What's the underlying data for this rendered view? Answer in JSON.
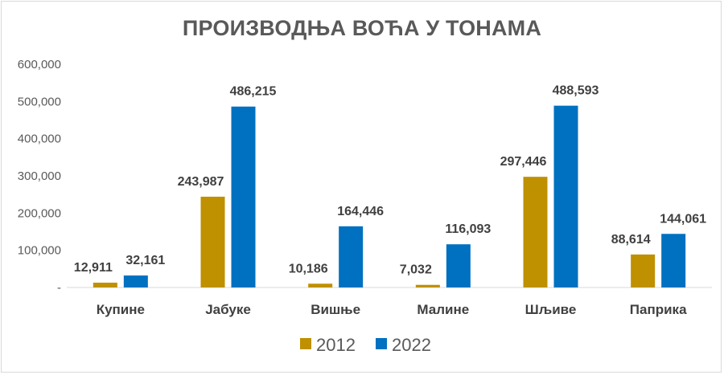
{
  "chart_data": {
    "type": "bar",
    "title": "ПРОИЗВОДЊА ВОЋА У ТОНАМА",
    "categories": [
      "Купине",
      "Јабуке",
      "Вишње",
      "Малине",
      "Шљиве",
      "Паприка"
    ],
    "series": [
      {
        "name": "2012",
        "color": "#bf9000",
        "values": [
          12911,
          243987,
          10186,
          7032,
          297446,
          88614
        ],
        "labels": [
          "12,911",
          "243,987",
          "10,186",
          "7,032",
          "297,446",
          "88,614"
        ]
      },
      {
        "name": "2022",
        "color": "#0070c0",
        "values": [
          32161,
          486215,
          164446,
          116093,
          488593,
          144061
        ],
        "labels": [
          "32,161",
          "486,215",
          "164,446",
          "116,093",
          "488,593",
          "144,061"
        ]
      }
    ],
    "ylim": [
      0,
      600000
    ],
    "yticks": [
      "-",
      "100,000",
      "200,000",
      "300,000",
      "400,000",
      "500,000",
      "600,000"
    ],
    "ytick_values": [
      0,
      100000,
      200000,
      300000,
      400000,
      500000,
      600000
    ],
    "grid": false,
    "legend": "bottom"
  }
}
